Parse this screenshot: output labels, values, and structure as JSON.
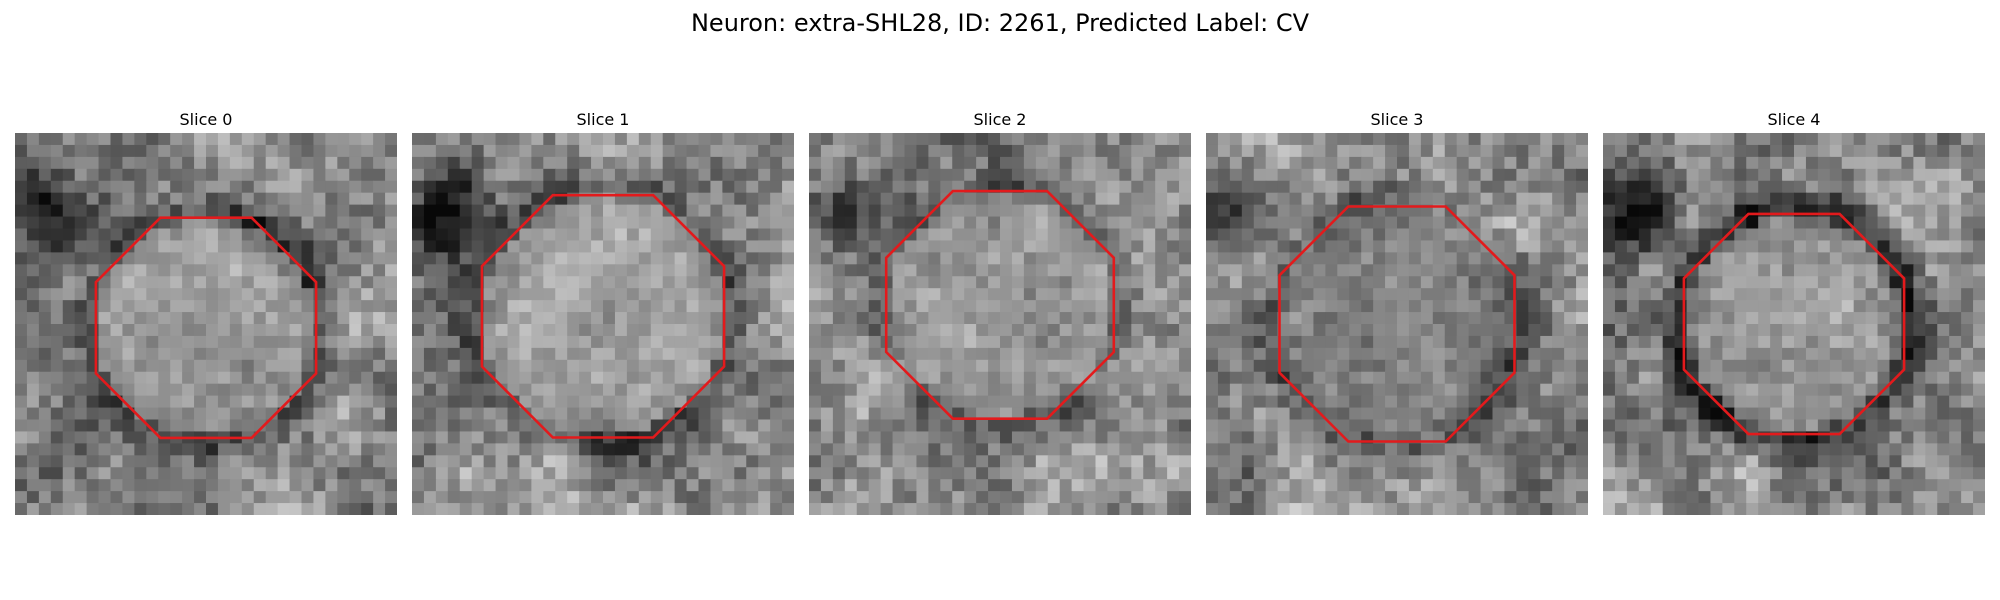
{
  "figure": {
    "title": "Neuron: extra-SHL28, ID: 2261, Predicted Label: CV"
  },
  "contour_color": "#e31a1c",
  "slices": [
    {
      "title": "Slice 0"
    },
    {
      "title": "Slice 1"
    },
    {
      "title": "Slice 2"
    },
    {
      "title": "Slice 3"
    },
    {
      "title": "Slice 4"
    }
  ]
}
